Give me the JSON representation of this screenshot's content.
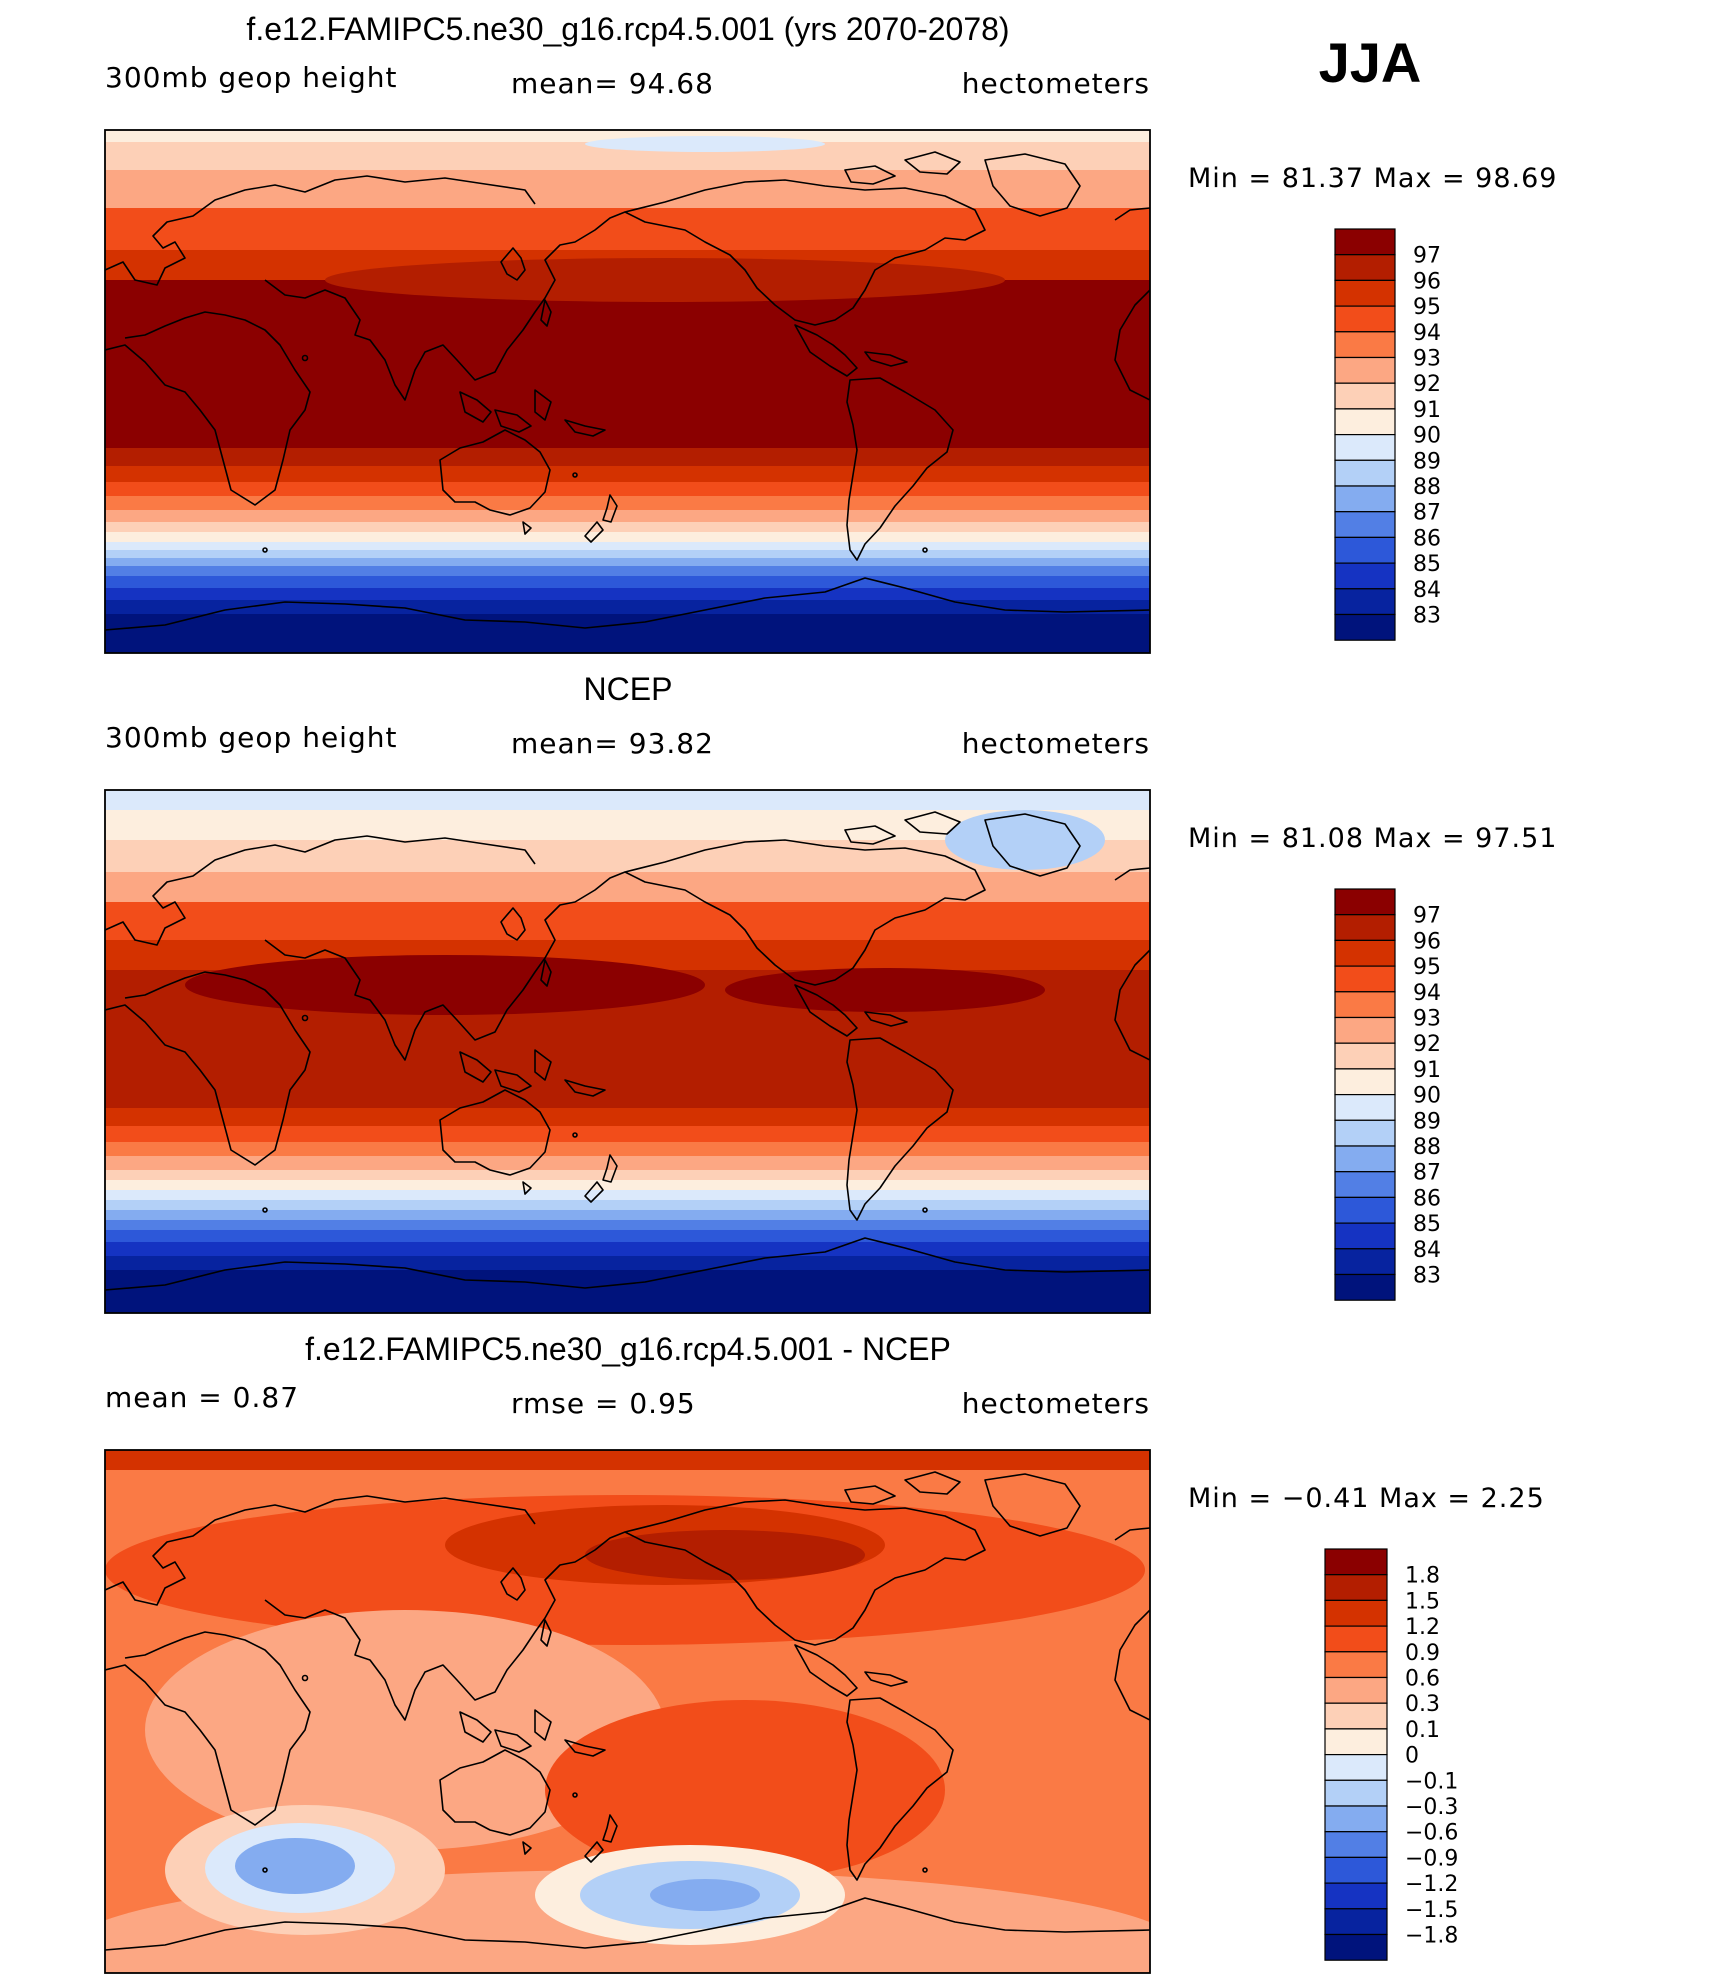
{
  "season": "JJA",
  "panels": [
    {
      "title": "f.e12.FAMIPC5.ne30_g16.rcp4.5.001 (yrs 2070-2078)",
      "left_label": "300mb  geop  height",
      "center_label": "mean=   94.68",
      "right_label": "hectometers",
      "minmax": "Min  =    81.37  Max  =    98.69",
      "legend_labels": [
        "97",
        "96",
        "95",
        "94",
        "93",
        "92",
        "91",
        "90",
        "89",
        "88",
        "87",
        "86",
        "85",
        "84",
        "83"
      ],
      "legend_colors": [
        "#8b0000",
        "#b31e00",
        "#d43200",
        "#f24d1a",
        "#fa7a45",
        "#fca783",
        "#fdd0b7",
        "#fdeede",
        "#dbe9fb",
        "#b3d0f7",
        "#84acf0",
        "#527fe5",
        "#2d58d9",
        "#1533c2",
        "#07239f",
        "#00137c"
      ]
    },
    {
      "title": "NCEP",
      "left_label": "300mb  geop  height",
      "center_label": "mean=   93.82",
      "right_label": "hectometers",
      "minmax": "Min  =    81.08  Max  =    97.51",
      "legend_labels": [
        "97",
        "96",
        "95",
        "94",
        "93",
        "92",
        "91",
        "90",
        "89",
        "88",
        "87",
        "86",
        "85",
        "84",
        "83"
      ],
      "legend_colors": [
        "#8b0000",
        "#b31e00",
        "#d43200",
        "#f24d1a",
        "#fa7a45",
        "#fca783",
        "#fdd0b7",
        "#fdeede",
        "#dbe9fb",
        "#b3d0f7",
        "#84acf0",
        "#527fe5",
        "#2d58d9",
        "#1533c2",
        "#07239f",
        "#00137c"
      ]
    },
    {
      "title": "f.e12.FAMIPC5.ne30_g16.rcp4.5.001 - NCEP",
      "left_label": "mean  =      0.87",
      "center_label": "rmse  =      0.95",
      "right_label": "hectometers",
      "minmax": "Min  =    −0.41  Max  =      2.25",
      "legend_labels": [
        "1.8",
        "1.5",
        "1.2",
        "0.9",
        "0.6",
        "0.3",
        "0.1",
        "0",
        "−0.1",
        "−0.3",
        "−0.6",
        "−0.9",
        "−1.2",
        "−1.5",
        "−1.8"
      ],
      "legend_colors": [
        "#8b0000",
        "#b31e00",
        "#d43200",
        "#f24d1a",
        "#fa7a45",
        "#fca783",
        "#fdd0b7",
        "#fdeede",
        "#dbe9fb",
        "#b3d0f7",
        "#84acf0",
        "#527fe5",
        "#2d58d9",
        "#1533c2",
        "#07239f",
        "#00137c"
      ]
    }
  ]
}
